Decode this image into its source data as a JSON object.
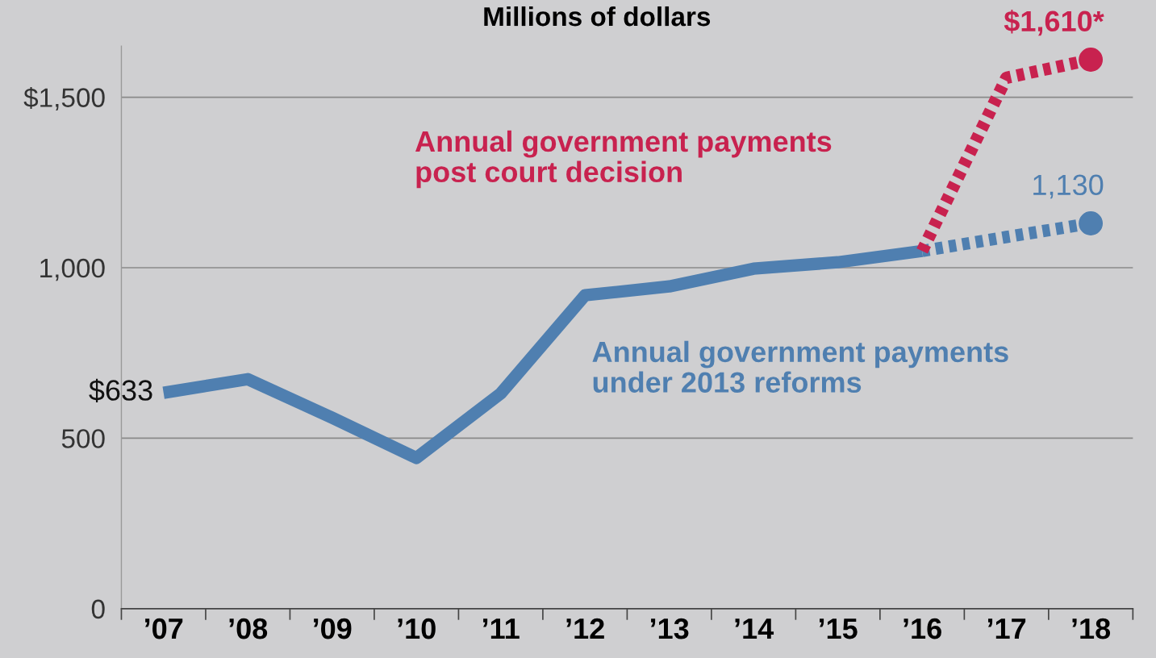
{
  "chart_data": {
    "type": "line",
    "title": "Millions of dollars",
    "categories": [
      "’07",
      "’08",
      "’09",
      "’10",
      "’11",
      "’12",
      "’13",
      "’14",
      "’15",
      "’16",
      "’17",
      "’18"
    ],
    "series": [
      {
        "name": "Annual government payments\nunder 2013 reforms",
        "color": "#4f7fb0",
        "line_style": "solid",
        "values": [
          633,
          673,
          560,
          442,
          631,
          919,
          945,
          997,
          1016,
          1049,
          null,
          null
        ],
        "value_labels": [
          "$633",
          null,
          null,
          null,
          null,
          null,
          null,
          null,
          null,
          null,
          null,
          null
        ]
      },
      {
        "color": "#4f7fb0",
        "line_style": "dotted",
        "values": [
          null,
          null,
          null,
          null,
          null,
          null,
          null,
          null,
          null,
          1049,
          1090,
          1130
        ]
      },
      {
        "name": "Annual government payments\npost court decision",
        "color": "#c8224f",
        "line_style": "dotted",
        "values": [
          null,
          null,
          null,
          null,
          null,
          null,
          null,
          null,
          null,
          1049,
          1557,
          1610
        ]
      },
      {
        "type": "scatter",
        "marker": "circle",
        "color": "#4f7fb0",
        "x": [
          "’18"
        ],
        "values": [
          1130
        ],
        "value_labels": [
          "1,130"
        ]
      },
      {
        "type": "scatter",
        "marker": "circle",
        "color": "#c8224f",
        "x": [
          "’18"
        ],
        "values": [
          1610
        ],
        "value_labels": [
          "$1,610*"
        ]
      }
    ],
    "ylim": [
      0,
      1650
    ],
    "yticks": [
      0,
      {
        "value": 500,
        "label": "500"
      },
      {
        "value": 1000,
        "label": "1,000"
      },
      {
        "value": 1500,
        "label": "$1,500"
      }
    ],
    "grid": "y"
  }
}
